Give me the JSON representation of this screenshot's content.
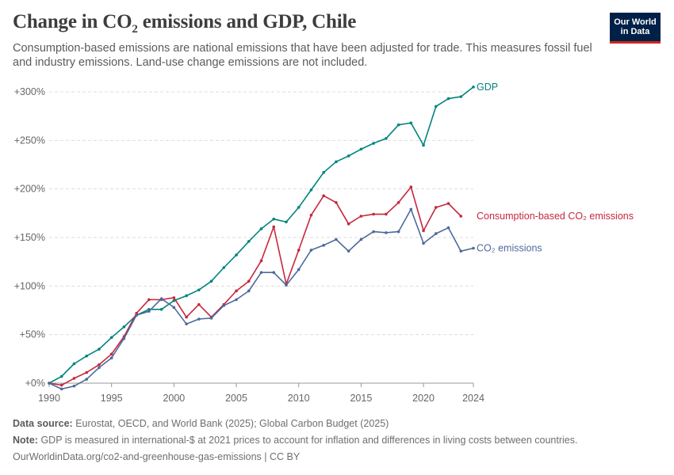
{
  "header": {
    "title_main": "Change in CO",
    "title_sub": "2",
    "title_rest": " emissions and GDP, Chile",
    "subtitle": "Consumption-based emissions are national emissions that have been adjusted for trade. This measures fossil fuel and industry emissions. Land-use change emissions are not included."
  },
  "logo": {
    "line1": "Our World",
    "line2": "in Data"
  },
  "footer": {
    "source_label": "Data source:",
    "source_text": "Eurostat, OECD, and World Bank (2025); Global Carbon Budget (2025)",
    "note_label": "Note:",
    "note_text": "GDP is measured in international-$ at 2021 prices to account for inflation and differences in living costs between countries.",
    "url": "OurWorldinData.org/co2-and-greenhouse-gas-emissions | CC BY"
  },
  "chart_data": {
    "type": "line",
    "x_ticks": [
      1990,
      1995,
      2000,
      2005,
      2010,
      2015,
      2020,
      2024
    ],
    "y_ticks": [
      0,
      50,
      100,
      150,
      200,
      250,
      300
    ],
    "y_tick_labels": [
      "+0%",
      "+50%",
      "+100%",
      "+150%",
      "+200%",
      "+250%",
      "+300%"
    ],
    "xlim": [
      1990,
      2024
    ],
    "ylim": [
      0,
      300
    ],
    "grid": true,
    "series": [
      {
        "name": "GDP",
        "color": "#00847e",
        "x": [
          1990,
          1991,
          1992,
          1993,
          1994,
          1995,
          1996,
          1997,
          1998,
          1999,
          2000,
          2001,
          2002,
          2003,
          2004,
          2005,
          2006,
          2007,
          2008,
          2009,
          2010,
          2011,
          2012,
          2013,
          2014,
          2015,
          2016,
          2017,
          2018,
          2019,
          2020,
          2021,
          2022,
          2023,
          2024
        ],
        "values": [
          0,
          7,
          20,
          28,
          35,
          47,
          58,
          70,
          76,
          76,
          85,
          90,
          96,
          105,
          119,
          132,
          146,
          159,
          169,
          166,
          181,
          199,
          217,
          228,
          234,
          241,
          247,
          252,
          266,
          268,
          245,
          285,
          293,
          295,
          305
        ]
      },
      {
        "name": "Consumption-based CO₂ emissions",
        "color": "#c5283d",
        "x": [
          1990,
          1991,
          1992,
          1993,
          1994,
          1995,
          1996,
          1997,
          1998,
          1999,
          2000,
          2001,
          2002,
          2003,
          2004,
          2005,
          2006,
          2007,
          2008,
          2009,
          2010,
          2011,
          2012,
          2013,
          2014,
          2015,
          2016,
          2017,
          2018,
          2019,
          2020,
          2021,
          2022,
          2023
        ],
        "values": [
          0,
          -2,
          5,
          11,
          19,
          30,
          48,
          72,
          86,
          86,
          88,
          68,
          81,
          68,
          81,
          95,
          105,
          126,
          161,
          102,
          137,
          173,
          193,
          186,
          164,
          172,
          174,
          174,
          186,
          202,
          157,
          181,
          185,
          172
        ]
      },
      {
        "name": "CO₂ emissions",
        "color": "#4c6a9c",
        "x": [
          1990,
          1991,
          1992,
          1993,
          1994,
          1995,
          1996,
          1997,
          1998,
          1999,
          2000,
          2001,
          2002,
          2003,
          2004,
          2005,
          2006,
          2007,
          2008,
          2009,
          2010,
          2011,
          2012,
          2013,
          2014,
          2015,
          2016,
          2017,
          2018,
          2019,
          2020,
          2021,
          2022,
          2023,
          2024
        ],
        "values": [
          0,
          -6,
          -3,
          4,
          16,
          26,
          46,
          70,
          74,
          87,
          78,
          61,
          66,
          67,
          80,
          86,
          95,
          114,
          114,
          101,
          117,
          137,
          142,
          148,
          136,
          148,
          156,
          155,
          156,
          179,
          144,
          154,
          160,
          136,
          139
        ]
      }
    ]
  }
}
